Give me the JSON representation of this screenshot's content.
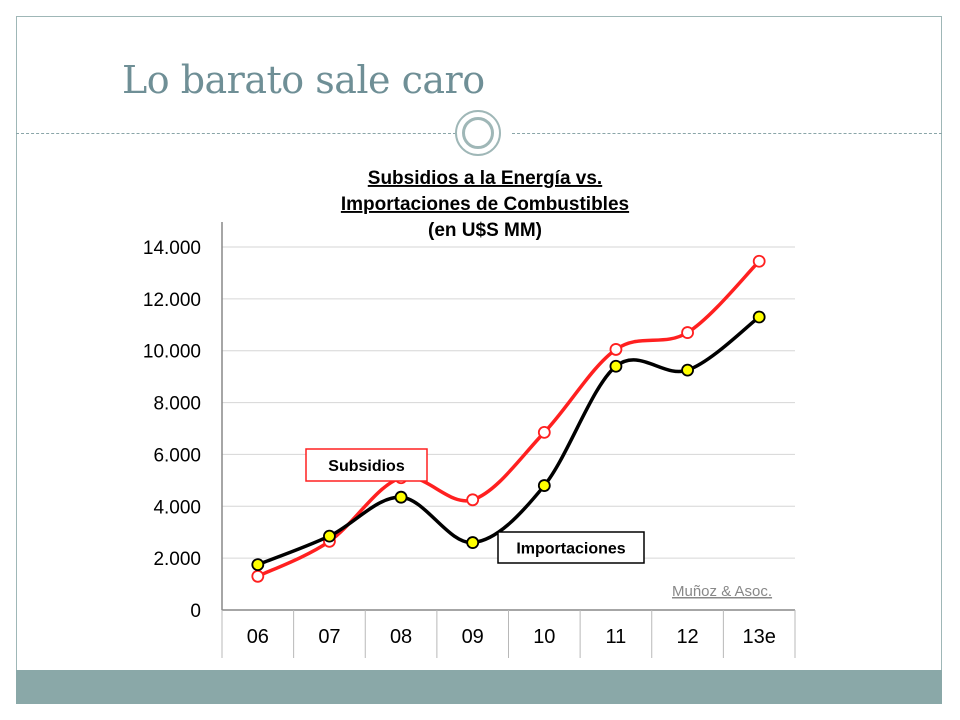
{
  "slide": {
    "title": "Lo barato sale caro"
  },
  "chart_data": {
    "type": "line",
    "title_lines": [
      "Subsidios a la Energía vs.",
      "Importaciones de Combustibles",
      "(en U$S MM)"
    ],
    "categories": [
      "06",
      "07",
      "08",
      "09",
      "10",
      "11",
      "12",
      "13e"
    ],
    "yticks": [
      "0",
      "2.000",
      "4.000",
      "6.000",
      "8.000",
      "10.000",
      "12.000",
      "14.000"
    ],
    "ylim": [
      0,
      14000
    ],
    "grid": true,
    "series": [
      {
        "name": "Subsidios",
        "color": "#ff2020",
        "values": [
          1300,
          2650,
          5100,
          4250,
          6850,
          10050,
          10700,
          13450
        ]
      },
      {
        "name": "Importaciones",
        "color": "#000000",
        "values": [
          1750,
          2850,
          4350,
          2600,
          4800,
          9400,
          9250,
          11300
        ]
      }
    ],
    "source": "Muñoz & Asoc."
  }
}
